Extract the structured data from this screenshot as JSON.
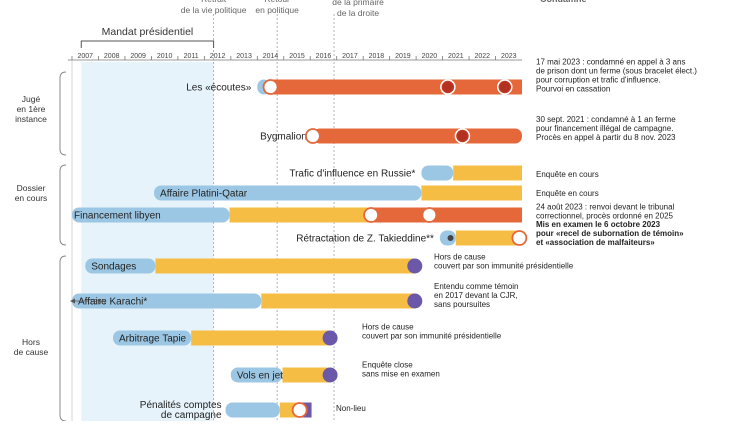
{
  "chart_data": {
    "type": "timeline",
    "xlim": [
      2007,
      2024
    ],
    "years": [
      2007,
      2008,
      2009,
      2010,
      2011,
      2012,
      2013,
      2014,
      2015,
      2016,
      2017,
      2018,
      2019,
      2020,
      2021,
      2022,
      2023
    ],
    "colors": {
      "blue": "#9cc7e4",
      "yellow": "#f6bd45",
      "red": "#e4683a",
      "violet": "#6b58a8",
      "highlight": "#e6f3fa",
      "text": "#222222",
      "gray": "#666666"
    },
    "mandat": {
      "label": "Mandat présidentiel",
      "start": 2007.35,
      "end": 2012.35
    },
    "milestones": [
      {
        "id": "retrait",
        "lines": [
          "Retrait",
          "de la vie politique"
        ],
        "x": 2012.35
      },
      {
        "id": "retour",
        "lines": [
          "Retour",
          "en politique"
        ],
        "x": 2014.75
      },
      {
        "id": "defaite",
        "lines": [
          "Défaite au 1er tour",
          "de la primaire",
          "de la droite"
        ],
        "x": 2016.9
      }
    ],
    "top_right_label": "Condamné",
    "groups": [
      {
        "id": "juge",
        "lines": [
          "Jugé",
          "en 1ère",
          "instance"
        ]
      },
      {
        "id": "dossier",
        "lines": [
          "Dossier",
          "en cours"
        ]
      },
      {
        "id": "hors",
        "lines": [
          "Hors",
          "de cause"
        ]
      }
    ],
    "rows": [
      {
        "id": "ecoutes",
        "label": "Les «écoutes»",
        "label_pos": "left",
        "segments": [
          {
            "from": 2014.0,
            "to": 2014.5,
            "color": "blue"
          },
          {
            "from": 2014.5,
            "to": 2024.0,
            "color": "red"
          }
        ],
        "markers": [
          {
            "x": 2014.5,
            "type": "open"
          },
          {
            "x": 2021.2,
            "type": "red-dot"
          },
          {
            "x": 2023.35,
            "type": "red-dot"
          }
        ],
        "annotation": [
          "17 mai 2023 : condamné en appel à 3 ans",
          "de prison dont un ferme (sous bracelet élect.)",
          "pour corruption et trafic d'influence.",
          "Pourvoi en cassation"
        ]
      },
      {
        "id": "bygmalion",
        "label": "Bygmalion",
        "label_pos": "left",
        "segments": [
          {
            "from": 2016.1,
            "to": 2024.0,
            "color": "red"
          }
        ],
        "markers": [
          {
            "x": 2016.1,
            "type": "open"
          },
          {
            "x": 2021.75,
            "type": "red-dot"
          }
        ],
        "annotation": [
          "30 sept. 2021 : condamné à 1 an ferme",
          "pour financement illégal de campagne.",
          "Procès en appel à partir du 8 nov. 2023"
        ]
      },
      {
        "id": "russie",
        "label": "Trafic d'influence en Russie*",
        "label_pos": "left",
        "segments": [
          {
            "from": 2020.2,
            "to": 2021.4,
            "color": "blue"
          },
          {
            "from": 2021.4,
            "to": 2024.0,
            "color": "yellow"
          }
        ],
        "markers": [],
        "annotation": [
          "Enquête en cours"
        ]
      },
      {
        "id": "platini",
        "label": "Affaire Platini-Qatar",
        "label_pos": "inside",
        "segments": [
          {
            "from": 2010.1,
            "to": 2020.2,
            "color": "blue"
          },
          {
            "from": 2020.2,
            "to": 2024.0,
            "color": "yellow"
          }
        ],
        "markers": [],
        "annotation": [
          "Enquête en cours"
        ]
      },
      {
        "id": "libyen",
        "label": "Financement libyen",
        "label_pos": "inside",
        "segments": [
          {
            "from": 2007.0,
            "to": 2012.95,
            "color": "blue"
          },
          {
            "from": 2012.95,
            "to": 2018.3,
            "color": "yellow"
          },
          {
            "from": 2018.3,
            "to": 2024.0,
            "color": "red"
          }
        ],
        "markers": [
          {
            "x": 2018.3,
            "type": "open"
          },
          {
            "x": 2020.5,
            "type": "open"
          }
        ],
        "annotation": [
          "24 août 2023 : renvoi devant le tribunal",
          "correctionnel, procès ordonné en 2025"
        ]
      },
      {
        "id": "takieddine",
        "label": "Rétractation de Z. Takieddine**",
        "label_pos": "left",
        "segments": [
          {
            "from": 2020.9,
            "to": 2021.5,
            "color": "blue"
          },
          {
            "from": 2021.5,
            "to": 2023.9,
            "color": "yellow"
          }
        ],
        "markers": [
          {
            "x": 2021.3,
            "type": "small-dot"
          },
          {
            "x": 2023.9,
            "type": "open-red"
          }
        ],
        "annotation": [
          "Mis en examen le 6 octobre 2023",
          "pour «recel de subornation de témoin»",
          "et «association de malfaiteurs»"
        ],
        "annotation_bold": [
          true,
          true,
          true
        ]
      },
      {
        "id": "sondages",
        "label": "Sondages",
        "label_pos": "inside",
        "segments": [
          {
            "from": 2007.5,
            "to": 2010.15,
            "color": "blue"
          },
          {
            "from": 2010.15,
            "to": 2019.95,
            "color": "yellow"
          }
        ],
        "markers": [
          {
            "x": 2019.95,
            "type": "violet"
          }
        ],
        "annotation": [
          "Hors de cause",
          "couvert par son immunité présidentielle"
        ]
      },
      {
        "id": "karachi",
        "label": "Affaire Karachi*",
        "label_pos": "inside",
        "segments": [
          {
            "from": 2007.0,
            "to": 2014.15,
            "color": "blue"
          },
          {
            "from": 2014.15,
            "to": 2019.95,
            "color": "yellow"
          }
        ],
        "markers": [
          {
            "x": 2019.95,
            "type": "violet"
          }
        ],
        "annotation": [
          "Entendu comme témoin",
          "en 2017 devant la CJR,",
          "sans poursuites"
        ],
        "prefix": "1995"
      },
      {
        "id": "tapie",
        "label": "Arbitrage Tapie",
        "label_pos": "inside",
        "segments": [
          {
            "from": 2008.55,
            "to": 2011.5,
            "color": "blue"
          },
          {
            "from": 2011.5,
            "to": 2016.75,
            "color": "yellow"
          }
        ],
        "markers": [
          {
            "x": 2016.75,
            "type": "violet"
          }
        ],
        "annotation": [
          "Hors de cause",
          "couvert par son immunité présidentielle"
        ]
      },
      {
        "id": "vols",
        "label": "Vols en jet",
        "label_pos": "inside",
        "segments": [
          {
            "from": 2013.0,
            "to": 2014.95,
            "color": "blue"
          },
          {
            "from": 2014.95,
            "to": 2016.75,
            "color": "yellow"
          }
        ],
        "markers": [
          {
            "x": 2016.75,
            "type": "violet"
          }
        ],
        "annotation": [
          "Enquête close",
          "sans mise en examen"
        ]
      },
      {
        "id": "penalites",
        "label": "Pénalités comptes de campagne",
        "label_lines": [
          "Pénalités comptes",
          "de campagne"
        ],
        "label_pos": "left",
        "segments": [
          {
            "from": 2012.8,
            "to": 2014.85,
            "color": "blue"
          },
          {
            "from": 2014.85,
            "to": 2015.6,
            "color": "yellow"
          },
          {
            "from": 2015.6,
            "to": 2016.05,
            "color": "violet"
          }
        ],
        "markers": [
          {
            "x": 2015.6,
            "type": "open-red"
          }
        ],
        "annotation": [
          "Non-lieu"
        ]
      }
    ]
  }
}
